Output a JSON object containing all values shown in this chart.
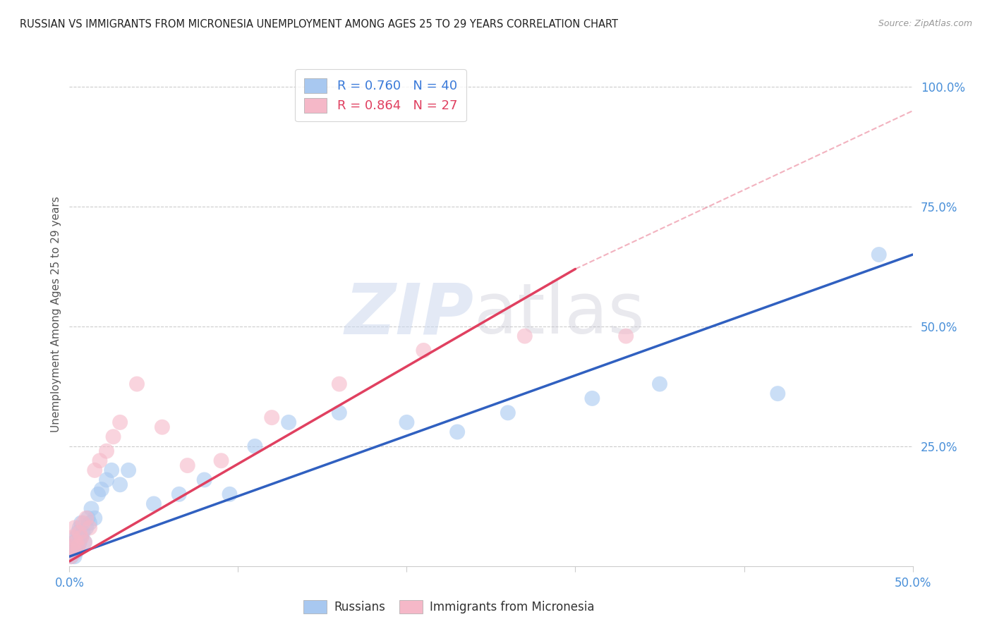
{
  "title": "RUSSIAN VS IMMIGRANTS FROM MICRONESIA UNEMPLOYMENT AMONG AGES 25 TO 29 YEARS CORRELATION CHART",
  "source": "Source: ZipAtlas.com",
  "ylabel": "Unemployment Among Ages 25 to 29 years",
  "ytick_labels": [
    "100.0%",
    "75.0%",
    "50.0%",
    "25.0%"
  ],
  "ytick_values": [
    1.0,
    0.75,
    0.5,
    0.25
  ],
  "legend_russian_R": "0.760",
  "legend_russian_N": "40",
  "legend_micronesia_R": "0.864",
  "legend_micronesia_N": "27",
  "russian_color": "#a8c8f0",
  "micronesia_color": "#f5b8c8",
  "line_russian_color": "#3060c0",
  "line_micronesia_color": "#e04060",
  "russian_x": [
    0.001,
    0.002,
    0.002,
    0.003,
    0.003,
    0.004,
    0.004,
    0.005,
    0.005,
    0.006,
    0.006,
    0.007,
    0.007,
    0.008,
    0.009,
    0.01,
    0.011,
    0.012,
    0.013,
    0.015,
    0.017,
    0.019,
    0.022,
    0.025,
    0.03,
    0.035,
    0.05,
    0.065,
    0.08,
    0.095,
    0.11,
    0.13,
    0.16,
    0.2,
    0.23,
    0.26,
    0.31,
    0.35,
    0.42,
    0.48
  ],
  "russian_y": [
    0.02,
    0.03,
    0.04,
    0.02,
    0.05,
    0.03,
    0.06,
    0.04,
    0.07,
    0.05,
    0.08,
    0.06,
    0.09,
    0.07,
    0.05,
    0.08,
    0.1,
    0.09,
    0.12,
    0.1,
    0.15,
    0.16,
    0.18,
    0.2,
    0.17,
    0.2,
    0.13,
    0.15,
    0.18,
    0.15,
    0.25,
    0.3,
    0.32,
    0.3,
    0.28,
    0.32,
    0.35,
    0.38,
    0.36,
    0.65
  ],
  "micronesia_x": [
    0.001,
    0.002,
    0.002,
    0.003,
    0.003,
    0.004,
    0.005,
    0.006,
    0.007,
    0.008,
    0.009,
    0.01,
    0.012,
    0.015,
    0.018,
    0.022,
    0.026,
    0.03,
    0.04,
    0.055,
    0.07,
    0.09,
    0.12,
    0.16,
    0.21,
    0.27,
    0.33
  ],
  "micronesia_y": [
    0.02,
    0.04,
    0.06,
    0.03,
    0.08,
    0.05,
    0.04,
    0.07,
    0.06,
    0.09,
    0.05,
    0.1,
    0.08,
    0.2,
    0.22,
    0.24,
    0.27,
    0.3,
    0.38,
    0.29,
    0.21,
    0.22,
    0.31,
    0.38,
    0.45,
    0.48,
    0.48
  ],
  "line_russian_x0": 0.0,
  "line_russian_y0": 0.02,
  "line_russian_x1": 0.5,
  "line_russian_y1": 0.65,
  "line_micronesia_x0": 0.0,
  "line_micronesia_y0": 0.01,
  "line_micronesia_solid_x1": 0.3,
  "line_micronesia_solid_y1": 0.62,
  "line_micronesia_dash_x1": 0.5,
  "line_micronesia_dash_y1": 0.95,
  "xmin": 0.0,
  "xmax": 0.5,
  "ymin": 0.0,
  "ymax": 1.05,
  "background_color": "#ffffff",
  "grid_color": "#cccccc"
}
